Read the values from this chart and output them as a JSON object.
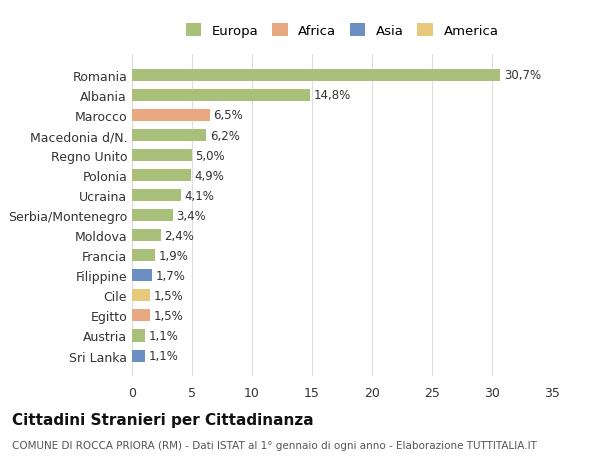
{
  "countries": [
    "Romania",
    "Albania",
    "Marocco",
    "Macedonia d/N.",
    "Regno Unito",
    "Polonia",
    "Ucraina",
    "Serbia/Montenegro",
    "Moldova",
    "Francia",
    "Filippine",
    "Cile",
    "Egitto",
    "Austria",
    "Sri Lanka"
  ],
  "values": [
    30.7,
    14.8,
    6.5,
    6.2,
    5.0,
    4.9,
    4.1,
    3.4,
    2.4,
    1.9,
    1.7,
    1.5,
    1.5,
    1.1,
    1.1
  ],
  "labels": [
    "30,7%",
    "14,8%",
    "6,5%",
    "6,2%",
    "5,0%",
    "4,9%",
    "4,1%",
    "3,4%",
    "2,4%",
    "1,9%",
    "1,7%",
    "1,5%",
    "1,5%",
    "1,1%",
    "1,1%"
  ],
  "colors": [
    "#a8c07a",
    "#a8c07a",
    "#e8a882",
    "#a8c07a",
    "#a8c07a",
    "#a8c07a",
    "#a8c07a",
    "#a8c07a",
    "#a8c07a",
    "#a8c07a",
    "#6b8fc2",
    "#e8c87a",
    "#e8a882",
    "#a8c07a",
    "#6b8fc2"
  ],
  "legend_labels": [
    "Europa",
    "Africa",
    "Asia",
    "America"
  ],
  "legend_colors": [
    "#a8c07a",
    "#e8a882",
    "#6b8fc2",
    "#e8c87a"
  ],
  "title": "Cittadini Stranieri per Cittadinanza",
  "subtitle": "COMUNE DI ROCCA PRIORA (RM) - Dati ISTAT al 1° gennaio di ogni anno - Elaborazione TUTTITALIA.IT",
  "xlim": [
    0,
    35
  ],
  "xticks": [
    0,
    5,
    10,
    15,
    20,
    25,
    30,
    35
  ],
  "background_color": "#ffffff",
  "grid_color": "#dddddd"
}
